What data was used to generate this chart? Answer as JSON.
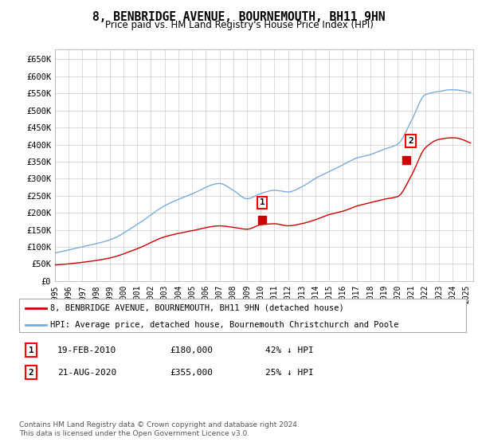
{
  "title": "8, BENBRIDGE AVENUE, BOURNEMOUTH, BH11 9HN",
  "subtitle": "Price paid vs. HM Land Registry's House Price Index (HPI)",
  "ylabel_ticks": [
    "£0",
    "£50K",
    "£100K",
    "£150K",
    "£200K",
    "£250K",
    "£300K",
    "£350K",
    "£400K",
    "£450K",
    "£500K",
    "£550K",
    "£600K",
    "£650K"
  ],
  "ytick_values": [
    0,
    50000,
    100000,
    150000,
    200000,
    250000,
    300000,
    350000,
    400000,
    450000,
    500000,
    550000,
    600000,
    650000
  ],
  "xlim_start": 1995.0,
  "xlim_end": 2025.5,
  "ylim": [
    0,
    680000
  ],
  "hpi_color": "#7aacda",
  "price_color": "#cc0000",
  "transaction1_x": 2010.12,
  "transaction1_y": 180000,
  "transaction1_label": "1",
  "transaction2_x": 2020.64,
  "transaction2_y": 355000,
  "transaction2_label": "2",
  "legend_property_label": "8, BENBRIDGE AVENUE, BOURNEMOUTH, BH11 9HN (detached house)",
  "legend_hpi_label": "HPI: Average price, detached house, Bournemouth Christchurch and Poole",
  "annotation1_date": "19-FEB-2010",
  "annotation1_price": "£180,000",
  "annotation1_hpi": "42% ↓ HPI",
  "annotation2_date": "21-AUG-2020",
  "annotation2_price": "£355,000",
  "annotation2_hpi": "25% ↓ HPI",
  "footnote": "Contains HM Land Registry data © Crown copyright and database right 2024.\nThis data is licensed under the Open Government Licence v3.0.",
  "background_color": "#ffffff",
  "grid_color": "#cccccc"
}
